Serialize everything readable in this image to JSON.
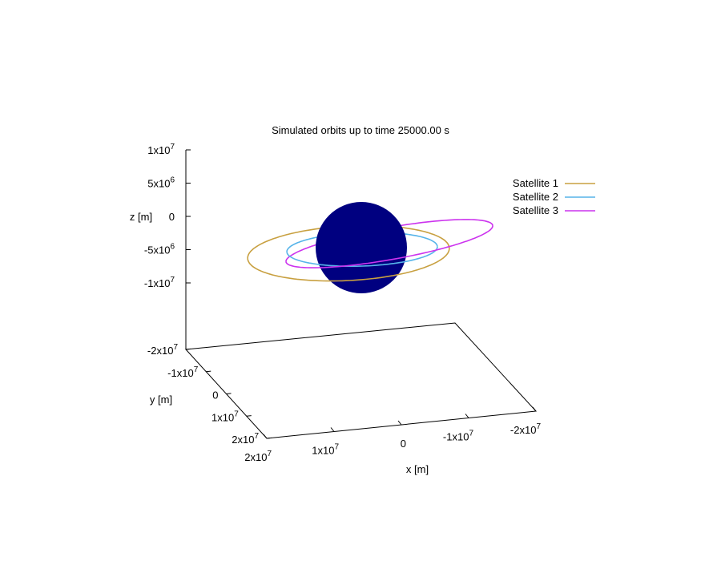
{
  "chart_data": {
    "type": "line",
    "title": "Simulated orbits up to time 25000.00 s",
    "xlabel": "x [m]",
    "ylabel": "y [m]",
    "zlabel": "z [m]",
    "x_ticks": [
      "2x10^7",
      "1x10^7",
      "0",
      "-1x10^7",
      "-2x10^7"
    ],
    "y_ticks": [
      "-2x10^7",
      "-1x10^7",
      "0",
      "1x10^7",
      "2x10^7"
    ],
    "z_ticks": [
      "1x10^7",
      "5x10^6",
      "0",
      "-5x10^6",
      "-1x10^7"
    ],
    "xlim": [
      -20000000,
      20000000
    ],
    "ylim": [
      -20000000,
      20000000
    ],
    "zlim": [
      -10000000,
      10000000
    ],
    "legend_position": "top-right",
    "grid": false,
    "central_body": {
      "color": "#000080"
    },
    "series": [
      {
        "name": "Satellite 1",
        "color": "#c8a040"
      },
      {
        "name": "Satellite 2",
        "color": "#56b4e9"
      },
      {
        "name": "Satellite 3",
        "color": "#cc33ee"
      }
    ]
  }
}
